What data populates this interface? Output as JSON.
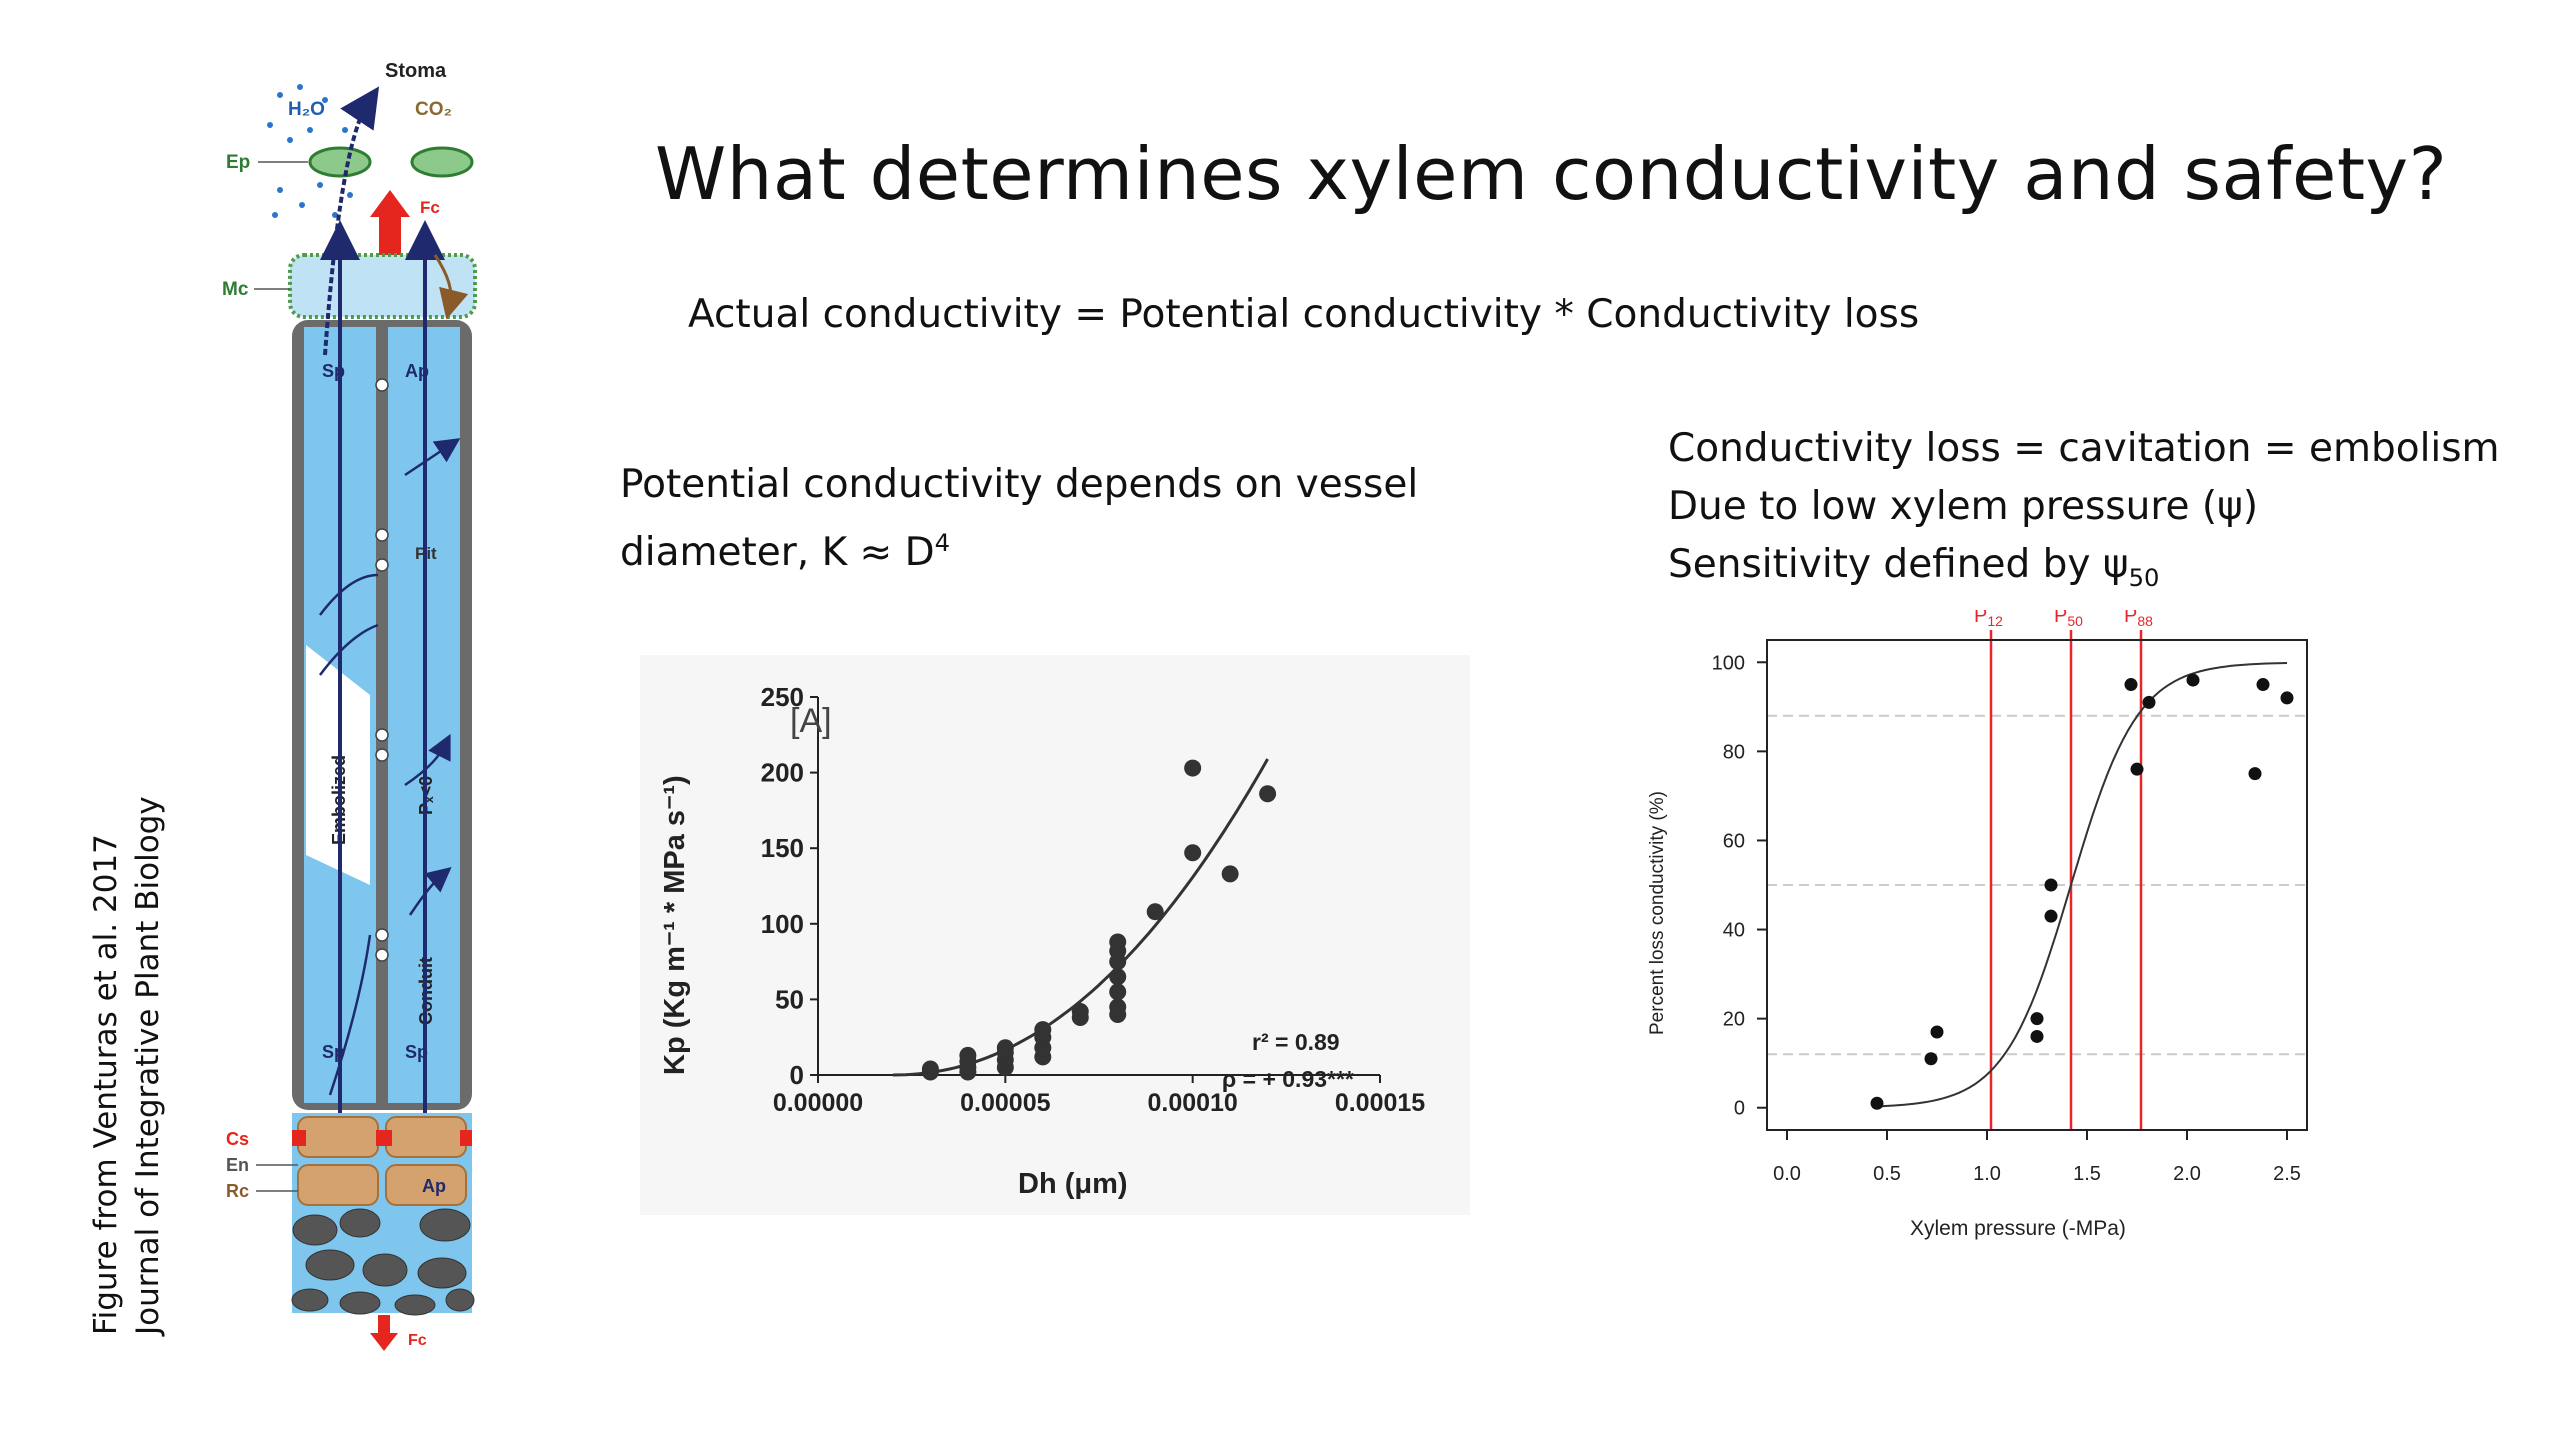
{
  "slide": {
    "title": "What determines xylem conductivity and safety?",
    "equation": "Actual conductivity = Potential conductivity * Conductivity loss",
    "left_text": {
      "line1": "Potential conductivity depends on vessel",
      "line2_prefix": "diameter,  K ≈ D",
      "line2_sup": "4"
    },
    "right_text": {
      "line1": "Conductivity loss = cavitation = embolism",
      "line2": "Due to low xylem pressure (ψ)",
      "line3_prefix": "Sensitivity defined by ψ",
      "line3_sub": "50"
    },
    "credit": {
      "line1": "Figure from Venturas et al. 2017",
      "line2": "Journal of Integrative Plant Biology"
    }
  },
  "diagram": {
    "labels": {
      "stoma": "Stoma",
      "h2o": "H₂O",
      "co2": "CO₂",
      "ep": "Ep",
      "fc_top": "Fc",
      "mc": "Mc",
      "sp": "Sp",
      "ap": "Ap",
      "pit": "Pit",
      "embolized": "Embolized",
      "px": "Pₓ<0",
      "conduit": "Conduit",
      "cs": "Cs",
      "en": "En",
      "rc": "Rc",
      "fc_bottom": "Fc"
    },
    "colors": {
      "xylem": "#7fc6ee",
      "wall": "#6b6b6b",
      "arrow": "#1f2a6e",
      "red": "#e5261e",
      "root": "#d4a26f"
    }
  },
  "chart_data": [
    {
      "type": "scatter",
      "panel_label": "[A]",
      "xlabel": "Dh (μm)",
      "ylabel": "Kp (Kg m⁻¹ * MPa s⁻¹)",
      "xlim": [
        0,
        0.00015
      ],
      "ylim": [
        0,
        250
      ],
      "x_tick_labels": [
        "0.00000",
        "0.00005",
        "0.00010",
        "0.00015"
      ],
      "x_ticks": [
        0,
        5e-05,
        0.0001,
        0.00015
      ],
      "y_ticks": [
        0,
        50,
        100,
        150,
        200,
        250
      ],
      "annotations": [
        "r² = 0.89",
        "ρ  = + 0.93***"
      ],
      "points": [
        [
          3e-05,
          2
        ],
        [
          3e-05,
          4
        ],
        [
          4e-05,
          2
        ],
        [
          4e-05,
          5
        ],
        [
          4e-05,
          9
        ],
        [
          4e-05,
          13
        ],
        [
          5e-05,
          5
        ],
        [
          5e-05,
          10
        ],
        [
          5e-05,
          15
        ],
        [
          5e-05,
          18
        ],
        [
          6e-05,
          12
        ],
        [
          6e-05,
          18
        ],
        [
          6e-05,
          25
        ],
        [
          6e-05,
          30
        ],
        [
          7e-05,
          38
        ],
        [
          7e-05,
          42
        ],
        [
          8e-05,
          40
        ],
        [
          8e-05,
          45
        ],
        [
          8e-05,
          55
        ],
        [
          8e-05,
          65
        ],
        [
          8e-05,
          75
        ],
        [
          8e-05,
          82
        ],
        [
          8e-05,
          88
        ],
        [
          9e-05,
          108
        ],
        [
          0.0001,
          147
        ],
        [
          0.0001,
          203
        ],
        [
          0.00011,
          133
        ],
        [
          0.00012,
          186
        ]
      ],
      "fit": {
        "type": "power",
        "x0": 2e-05,
        "x1": 0.00012,
        "y_at_x1": 209,
        "exponent": 2.1
      }
    },
    {
      "type": "scatter",
      "xlabel": "Xylem pressure (-MPa)",
      "ylabel": "Percent loss conductivity (%)",
      "xlim": [
        -0.1,
        2.6
      ],
      "ylim": [
        -5,
        105
      ],
      "x_ticks": [
        0.0,
        0.5,
        1.0,
        1.5,
        2.0,
        2.5
      ],
      "x_tick_labels": [
        "0.0",
        "0.5",
        "1.0",
        "1.5",
        "2.0",
        "2.5"
      ],
      "y_ticks": [
        0,
        20,
        40,
        60,
        80,
        100
      ],
      "reference_lines": [
        {
          "label": "P",
          "sub": "12",
          "x": 1.02,
          "y": 12
        },
        {
          "label": "P",
          "sub": "50",
          "x": 1.42,
          "y": 50
        },
        {
          "label": "P",
          "sub": "88",
          "x": 1.77,
          "y": 88
        }
      ],
      "points": [
        [
          0.45,
          1
        ],
        [
          0.72,
          11
        ],
        [
          0.75,
          17
        ],
        [
          1.25,
          16
        ],
        [
          1.25,
          20
        ],
        [
          1.32,
          43
        ],
        [
          1.32,
          50
        ],
        [
          1.72,
          95
        ],
        [
          1.75,
          76
        ],
        [
          1.81,
          91
        ],
        [
          2.03,
          96
        ],
        [
          2.34,
          75
        ],
        [
          2.38,
          95
        ],
        [
          2.5,
          92
        ]
      ],
      "fit": {
        "type": "logistic",
        "midpoint": 1.42,
        "slope": 6.0,
        "x0": 0.45,
        "x1": 2.5
      },
      "colors": {
        "reference": "#e8262a",
        "grid": "#cccccc"
      }
    }
  ]
}
